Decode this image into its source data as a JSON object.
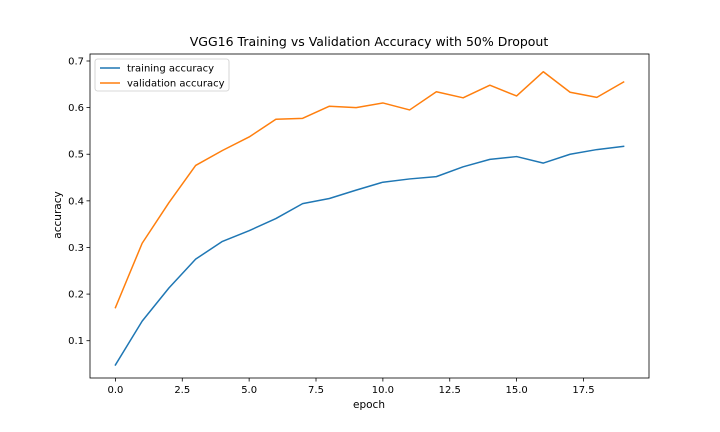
{
  "chart_data": {
    "type": "line",
    "title": "VGG16 Training vs Validation Accuracy with 50% Dropout",
    "xlabel": "epoch",
    "ylabel": "accuracy",
    "xlim": [
      -0.95,
      19.95
    ],
    "ylim": [
      0.02,
      0.715
    ],
    "xticks": [
      0.0,
      2.5,
      5.0,
      7.5,
      10.0,
      12.5,
      15.0,
      17.5
    ],
    "xtick_labels": [
      "0.0",
      "2.5",
      "5.0",
      "7.5",
      "10.0",
      "12.5",
      "15.0",
      "17.5"
    ],
    "yticks": [
      0.1,
      0.2,
      0.3,
      0.4,
      0.5,
      0.6,
      0.7
    ],
    "ytick_labels": [
      "0.1",
      "0.2",
      "0.3",
      "0.4",
      "0.5",
      "0.6",
      "0.7"
    ],
    "grid": false,
    "legend_position": "top-left",
    "x": [
      0,
      1,
      2,
      3,
      4,
      5,
      6,
      7,
      8,
      9,
      10,
      11,
      12,
      13,
      14,
      15,
      16,
      17,
      18,
      19
    ],
    "series": [
      {
        "name": "training accuracy",
        "color": "#1f77b4",
        "values": [
          0.048,
          0.142,
          0.213,
          0.275,
          0.313,
          0.336,
          0.362,
          0.394,
          0.405,
          0.423,
          0.44,
          0.447,
          0.452,
          0.473,
          0.489,
          0.495,
          0.481,
          0.5,
          0.51,
          0.517
        ]
      },
      {
        "name": "validation accuracy",
        "color": "#ff7f0e",
        "values": [
          0.171,
          0.309,
          0.396,
          0.476,
          0.508,
          0.537,
          0.575,
          0.577,
          0.603,
          0.6,
          0.61,
          0.595,
          0.634,
          0.621,
          0.648,
          0.625,
          0.677,
          0.633,
          0.622,
          0.655
        ]
      }
    ]
  }
}
